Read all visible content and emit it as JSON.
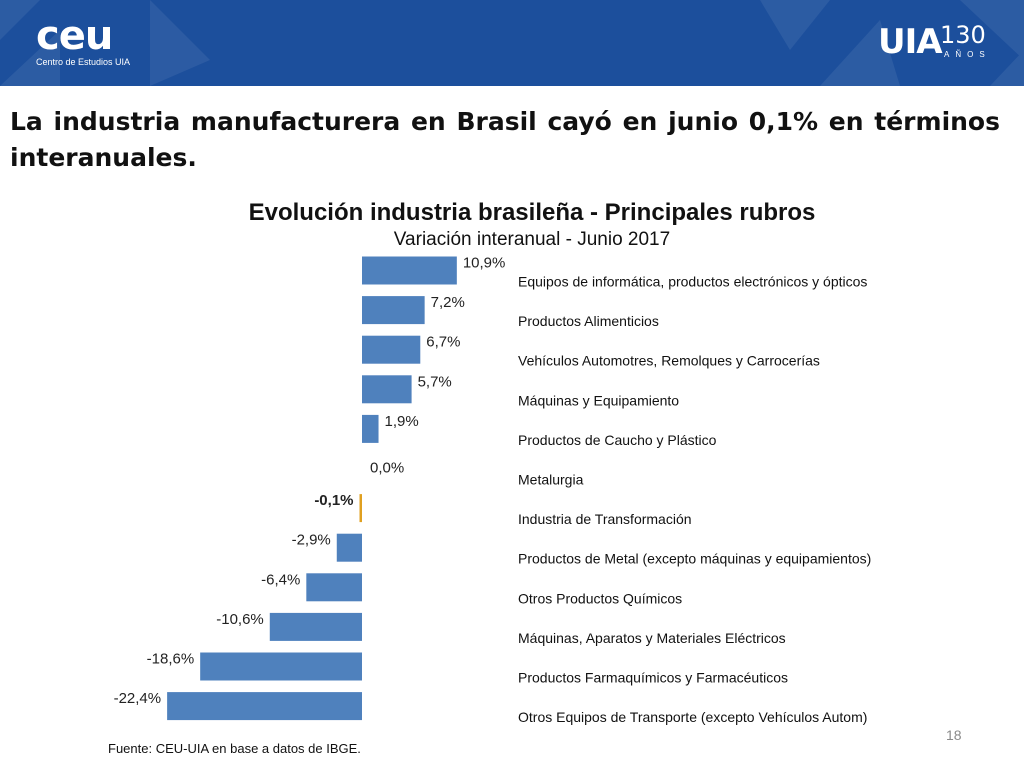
{
  "header": {
    "logo_left": {
      "word": "ceu",
      "sub": "Centro de Estudios UIA"
    },
    "logo_right": {
      "word": "UIA",
      "number": "130",
      "sub": "AÑOS"
    },
    "colors": {
      "background": "#1c4f9c"
    }
  },
  "headline": "La industria manufacturera en Brasil cayó en junio 0,1% en términos interanuales.",
  "chart_data": {
    "type": "bar",
    "orientation": "horizontal",
    "title": "Evolución industria brasileña - Principales rubros",
    "subtitle": "Variación interanual - Junio 2017",
    "categories": [
      "Equipos de informática, productos electrónicos y ópticos",
      "Productos Alimenticios",
      "Vehículos Automotres, Remolques y Carrocerías",
      "Máquinas y Equipamiento",
      "Productos de Caucho y Plástico",
      "Metalurgia",
      "Industria de Transformación",
      "Productos de Metal (excepto máquinas y equipamientos)",
      "Otros Productos Químicos",
      "Máquinas, Aparatos y Materiales Eléctricos",
      "Productos Farmaquímicos y Farmacéuticos",
      "Otros Equipos de Transporte (excepto Vehículos Autom)"
    ],
    "values": [
      10.9,
      7.2,
      6.7,
      5.7,
      1.9,
      0.0,
      -0.1,
      -2.9,
      -6.4,
      -10.6,
      -18.6,
      -22.4
    ],
    "data_labels": [
      "10,9%",
      "7,2%",
      "6,7%",
      "5,7%",
      "1,9%",
      "0,0%",
      "-0,1%",
      "-2,9%",
      "-6,4%",
      "-10,6%",
      "-18,6%",
      "-22,4%"
    ],
    "highlight_index": 6,
    "colors": {
      "bar": "#4f81bd",
      "highlight": "#e0a020"
    },
    "legend": false,
    "grid": false
  },
  "source": "Fuente: CEU-UIA en base a datos de IBGE.",
  "page_number": "18"
}
